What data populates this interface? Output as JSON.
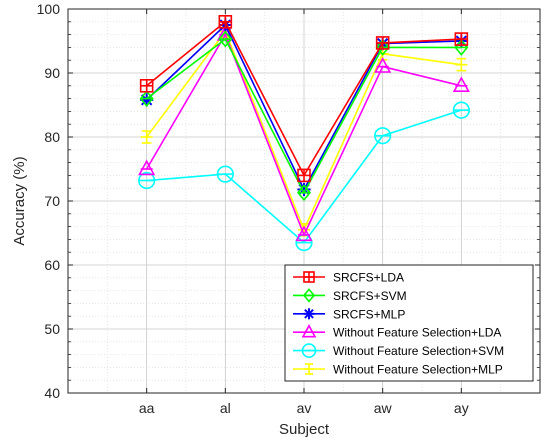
{
  "chart_data": {
    "type": "line",
    "categories": [
      "aa",
      "al",
      "av",
      "aw",
      "ay"
    ],
    "xlabel": "Subject",
    "ylabel": "Accuracy (%)",
    "ylim": [
      40,
      100
    ],
    "yticks": [
      40,
      50,
      60,
      70,
      80,
      90,
      100
    ],
    "grid": true,
    "grid_style": "dotted",
    "legend_position": "bottom-right",
    "series": [
      {
        "name": "SRCFS+LDA",
        "color": "#ff0000",
        "marker": "square",
        "values": [
          88.0,
          98.0,
          74.0,
          94.7,
          95.3
        ]
      },
      {
        "name": "SRCFS+SVM",
        "color": "#00ff00",
        "marker": "diamond",
        "values": [
          86.0,
          95.3,
          71.3,
          94.0,
          94.0
        ]
      },
      {
        "name": "SRCFS+MLP",
        "color": "#0000ff",
        "marker": "asterisk",
        "values": [
          85.8,
          97.5,
          71.8,
          94.6,
          95.0
        ]
      },
      {
        "name": "Without Feature Selection+LDA",
        "color": "#ff00ff",
        "marker": "triangle",
        "values": [
          75.0,
          96.0,
          64.7,
          91.0,
          88.0
        ]
      },
      {
        "name": "Without Feature Selection+SVM",
        "color": "#00ffff",
        "marker": "circle",
        "values": [
          73.2,
          74.2,
          63.5,
          80.2,
          84.2
        ]
      },
      {
        "name": "Without Feature Selection+MLP",
        "color": "#ffff00",
        "marker": "errorbar",
        "values": [
          80.0,
          96.5,
          65.5,
          93.0,
          91.3
        ]
      }
    ]
  }
}
